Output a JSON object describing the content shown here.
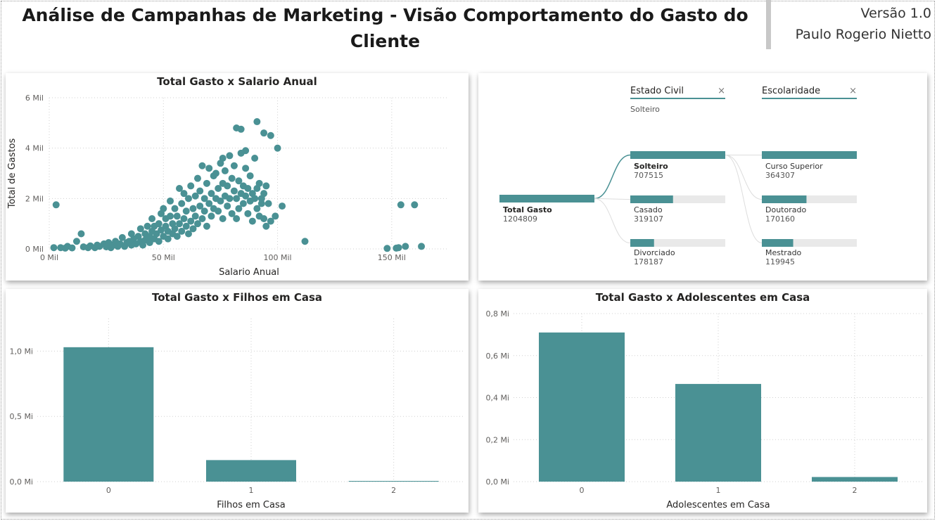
{
  "header": {
    "title": "Análise de Campanhas de Marketing - Visão Comportamento do Gasto do Cliente",
    "version": "Versão 1.0",
    "author": "Paulo Rogerio Nietto"
  },
  "colors": {
    "teal": "#4a9194",
    "gridline": "#d0d0d0",
    "track": "#e9e9e9"
  },
  "chart_data": [
    {
      "type": "scatter",
      "title": "Total Gasto x Salario Anual",
      "xlabel": "Salario Anual",
      "ylabel": "Total de Gastos",
      "xlim": [
        0,
        175
      ],
      "ylim": [
        0,
        6
      ],
      "xticks": [
        0,
        50,
        100,
        150
      ],
      "xtick_labels": [
        "0 Mil",
        "50 Mil",
        "100 Mil",
        "150 Mil"
      ],
      "yticks": [
        0,
        2,
        4,
        6
      ],
      "ytick_labels": [
        "0 Mil",
        "2 Mil",
        "4 Mil",
        "6 Mil"
      ],
      "points": [
        [
          2,
          0.05
        ],
        [
          3,
          1.75
        ],
        [
          5,
          0.05
        ],
        [
          7,
          0.03
        ],
        [
          8,
          0.1
        ],
        [
          10,
          0.04
        ],
        [
          12,
          0.3
        ],
        [
          14,
          0.6
        ],
        [
          15,
          0.08
        ],
        [
          17,
          0.05
        ],
        [
          18,
          0.12
        ],
        [
          20,
          0.05
        ],
        [
          21,
          0.15
        ],
        [
          22,
          0.1
        ],
        [
          24,
          0.2
        ],
        [
          25,
          0.08
        ],
        [
          26,
          0.25
        ],
        [
          27,
          0.05
        ],
        [
          28,
          0.15
        ],
        [
          29,
          0.3
        ],
        [
          30,
          0.1
        ],
        [
          31,
          0.2
        ],
        [
          32,
          0.45
        ],
        [
          33,
          0.1
        ],
        [
          34,
          0.25
        ],
        [
          35,
          0.3
        ],
        [
          36,
          0.6
        ],
        [
          36,
          0.15
        ],
        [
          37,
          0.4
        ],
        [
          38,
          0.2
        ],
        [
          39,
          0.5
        ],
        [
          40,
          0.3
        ],
        [
          40,
          0.8
        ],
        [
          41,
          0.15
        ],
        [
          42,
          0.6
        ],
        [
          42,
          0.35
        ],
        [
          43,
          0.9
        ],
        [
          44,
          0.25
        ],
        [
          44,
          0.5
        ],
        [
          45,
          0.7
        ],
        [
          45,
          1.2
        ],
        [
          46,
          0.4
        ],
        [
          46,
          0.9
        ],
        [
          47,
          0.6
        ],
        [
          48,
          0.3
        ],
        [
          48,
          1.0
        ],
        [
          49,
          0.75
        ],
        [
          49,
          1.4
        ],
        [
          50,
          0.5
        ],
        [
          50,
          1.6
        ],
        [
          51,
          0.9
        ],
        [
          51,
          1.2
        ],
        [
          52,
          0.4
        ],
        [
          52,
          0.7
        ],
        [
          53,
          1.3
        ],
        [
          53,
          1.9
        ],
        [
          54,
          0.6
        ],
        [
          54,
          1.0
        ],
        [
          55,
          0.8
        ],
        [
          55,
          1.6
        ],
        [
          56,
          0.5
        ],
        [
          56,
          1.3
        ],
        [
          57,
          2.4
        ],
        [
          57,
          1.0
        ],
        [
          58,
          0.7
        ],
        [
          58,
          1.8
        ],
        [
          59,
          1.2
        ],
        [
          59,
          2.2
        ],
        [
          60,
          0.9
        ],
        [
          60,
          1.5
        ],
        [
          61,
          0.6
        ],
        [
          61,
          2.0
        ],
        [
          62,
          1.1
        ],
        [
          62,
          2.5
        ],
        [
          63,
          1.6
        ],
        [
          63,
          0.8
        ],
        [
          64,
          2.1
        ],
        [
          64,
          1.3
        ],
        [
          65,
          2.8
        ],
        [
          65,
          1.0
        ],
        [
          66,
          1.7
        ],
        [
          66,
          2.3
        ],
        [
          67,
          1.2
        ],
        [
          67,
          3.3
        ],
        [
          68,
          2.0
        ],
        [
          68,
          1.5
        ],
        [
          69,
          2.6
        ],
        [
          69,
          0.9
        ],
        [
          70,
          1.8
        ],
        [
          70,
          3.2
        ],
        [
          71,
          2.2
        ],
        [
          71,
          1.3
        ],
        [
          72,
          2.9
        ],
        [
          72,
          1.6
        ],
        [
          73,
          2.0
        ],
        [
          73,
          3.0
        ],
        [
          74,
          1.5
        ],
        [
          74,
          2.4
        ],
        [
          75,
          3.4
        ],
        [
          75,
          1.9
        ],
        [
          76,
          2.6
        ],
        [
          76,
          1.2
        ],
        [
          77,
          2.1
        ],
        [
          77,
          3.1
        ],
        [
          78,
          1.7
        ],
        [
          78,
          2.5
        ],
        [
          79,
          3.7
        ],
        [
          79,
          2.0
        ],
        [
          80,
          2.8
        ],
        [
          80,
          1.4
        ],
        [
          81,
          2.3
        ],
        [
          81,
          3.3
        ],
        [
          82,
          2.0
        ],
        [
          82,
          1.2
        ],
        [
          83,
          2.7
        ],
        [
          83,
          1.6
        ],
        [
          84,
          2.2
        ],
        [
          84,
          3.8
        ],
        [
          85,
          1.8
        ],
        [
          85,
          2.5
        ],
        [
          86,
          3.9
        ],
        [
          86,
          2.1
        ],
        [
          87,
          1.4
        ],
        [
          87,
          2.4
        ],
        [
          88,
          2.9
        ],
        [
          88,
          1.9
        ],
        [
          89,
          2.2
        ],
        [
          89,
          1.1
        ],
        [
          90,
          2.0
        ],
        [
          90,
          3.6
        ],
        [
          91,
          1.6
        ],
        [
          91,
          2.4
        ],
        [
          92,
          2.6
        ],
        [
          92,
          1.3
        ],
        [
          93,
          2.0
        ],
        [
          93,
          1.8
        ],
        [
          94,
          2.2
        ],
        [
          94,
          1.2
        ],
        [
          95,
          2.5
        ],
        [
          95,
          0.9
        ],
        [
          96,
          1.8
        ],
        [
          97,
          1.1
        ],
        [
          99,
          1.3
        ],
        [
          100,
          4.0
        ],
        [
          102,
          1.7
        ],
        [
          112,
          0.3
        ],
        [
          148,
          0.02
        ],
        [
          152,
          0.03
        ],
        [
          153,
          0.05
        ],
        [
          154,
          1.75
        ],
        [
          156,
          0.1
        ],
        [
          160,
          1.75
        ],
        [
          163,
          0.1
        ],
        [
          82,
          4.8
        ],
        [
          84,
          4.75
        ],
        [
          91,
          5.05
        ],
        [
          94,
          4.6
        ],
        [
          97,
          4.5
        ],
        [
          86,
          3.2
        ],
        [
          76,
          3.6
        ]
      ]
    },
    {
      "type": "decomposition-tree",
      "root": {
        "label": "Total Gasto",
        "value": "1204809",
        "fraction": 1.0
      },
      "levels": [
        {
          "header": "Estado Civil",
          "selected": "Solteiro",
          "nodes": [
            {
              "label": "Solteiro",
              "value": "707515",
              "fraction": 1.0,
              "selected": true
            },
            {
              "label": "Casado",
              "value": "319107",
              "fraction": 0.45
            },
            {
              "label": "Divorciado",
              "value": "178187",
              "fraction": 0.25
            }
          ]
        },
        {
          "header": "Escolaridade",
          "nodes": [
            {
              "label": "Curso Superior",
              "value": "364307",
              "fraction": 1.0
            },
            {
              "label": "Doutorado",
              "value": "170160",
              "fraction": 0.47
            },
            {
              "label": "Mestrado",
              "value": "119945",
              "fraction": 0.33
            }
          ]
        }
      ]
    },
    {
      "type": "bar",
      "title": "Total Gasto x Filhos em Casa",
      "xlabel": "Filhos em Casa",
      "ylabel": "",
      "categories": [
        "0",
        "1",
        "2"
      ],
      "values": [
        1.03,
        0.165,
        0.003
      ],
      "ylim": [
        0,
        1.25
      ],
      "yticks": [
        0,
        0.5,
        1.0
      ],
      "ytick_labels": [
        "0,0 Mi",
        "0,5 Mi",
        "1,0 Mi"
      ]
    },
    {
      "type": "bar",
      "title": "Total Gasto x Adolescentes em Casa",
      "xlabel": "Adolescentes em Casa",
      "ylabel": "",
      "categories": [
        "0",
        "1",
        "2"
      ],
      "values": [
        0.71,
        0.465,
        0.022
      ],
      "ylim": [
        0,
        0.8
      ],
      "yticks": [
        0,
        0.2,
        0.4,
        0.6,
        0.8
      ],
      "ytick_labels": [
        "0,0 Mi",
        "0,2 Mi",
        "0,4 Mi",
        "0,6 Mi",
        "0,8 Mi"
      ]
    }
  ]
}
